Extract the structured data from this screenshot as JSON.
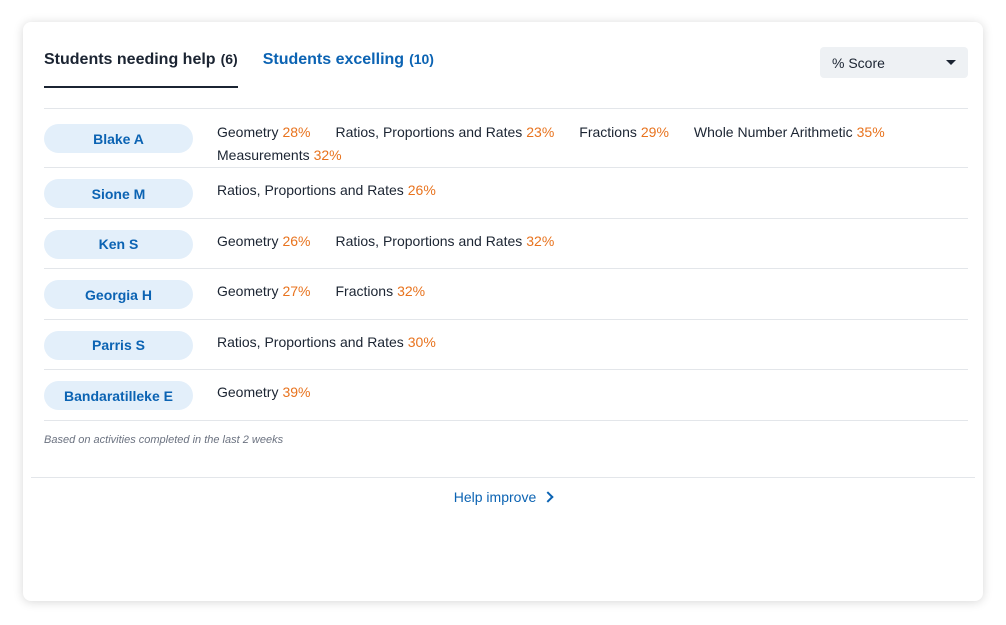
{
  "tabs": [
    {
      "label": "Students needing help",
      "count": "(6)",
      "active": true
    },
    {
      "label": "Students excelling",
      "count": "(10)",
      "active": false
    }
  ],
  "score_select": {
    "value": "% Score"
  },
  "students": [
    {
      "name": "Blake A",
      "topics": [
        {
          "name": "Geometry",
          "score": "28%"
        },
        {
          "name": "Ratios, Proportions and Rates",
          "score": "23%"
        },
        {
          "name": "Fractions",
          "score": "29%"
        },
        {
          "name": "Whole Number Arithmetic",
          "score": "35%"
        },
        {
          "name": "Measurements",
          "score": "32%"
        }
      ]
    },
    {
      "name": "Sione M",
      "topics": [
        {
          "name": "Ratios, Proportions and Rates",
          "score": "26%"
        }
      ]
    },
    {
      "name": "Ken S",
      "topics": [
        {
          "name": "Geometry",
          "score": "26%"
        },
        {
          "name": "Ratios, Proportions and Rates",
          "score": "32%"
        }
      ]
    },
    {
      "name": "Georgia H",
      "topics": [
        {
          "name": "Geometry",
          "score": "27%"
        },
        {
          "name": "Fractions",
          "score": "32%"
        }
      ]
    },
    {
      "name": "Parris S",
      "topics": [
        {
          "name": "Ratios, Proportions and Rates",
          "score": "30%"
        }
      ]
    },
    {
      "name": "Bandaratilleke E",
      "topics": [
        {
          "name": "Geometry",
          "score": "39%"
        }
      ]
    }
  ],
  "footnote": "Based on activities completed in the last 2 weeks",
  "help_link": {
    "label": "Help improve",
    "icon": "chevron-right-icon"
  },
  "colors": {
    "link_blue": "#0b63b3",
    "score_orange": "#e8731e",
    "pill_bg": "#e3effa",
    "text_dark": "#1b2432"
  }
}
